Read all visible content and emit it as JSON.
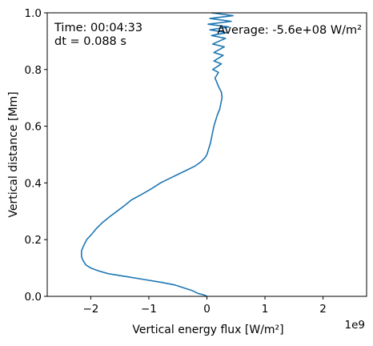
{
  "chart_data": {
    "type": "line",
    "xlabel": "Vertical energy flux [W/m²]",
    "ylabel": "Vertical distance [Mm]",
    "x_offset_label": "1e9",
    "x_scale": 1000000000,
    "xlim": [
      -2.75,
      2.75
    ],
    "ylim": [
      0.0,
      1.0
    ],
    "xticks": [
      -2,
      -1,
      0,
      1,
      2
    ],
    "xtick_labels": [
      "−2",
      "−1",
      "0",
      "1",
      "2"
    ],
    "yticks": [
      0.0,
      0.2,
      0.4,
      0.6,
      0.8,
      1.0
    ],
    "ytick_labels": [
      "0.0",
      "0.2",
      "0.4",
      "0.6",
      "0.8",
      "1.0"
    ],
    "grid": false,
    "line_color": "#1f77b4",
    "annotations": {
      "time": "Time: 00:04:33",
      "dt": "dt = 0.088 s",
      "average": "Average: -5.6e+08 W/m²"
    },
    "series": [
      {
        "x": [
          0.0,
          -0.05,
          -0.15,
          -0.25,
          -0.55,
          -0.8,
          -1.1,
          -1.4,
          -1.7,
          -1.87,
          -2.0,
          -2.08,
          -2.13,
          -2.16,
          -2.16,
          -2.12,
          -2.07,
          -1.98,
          -1.9,
          -1.8,
          -1.68,
          -1.55,
          -1.42,
          -1.3,
          -1.12,
          -0.95,
          -0.8,
          -0.65,
          -0.5,
          -0.35,
          -0.2,
          -0.1,
          -0.03,
          0.0,
          0.03,
          0.06,
          0.08,
          0.1,
          0.12,
          0.15,
          0.18,
          0.22,
          0.24,
          0.26,
          0.25,
          0.2,
          0.14,
          0.2,
          0.1,
          0.25,
          0.12,
          0.28,
          0.12,
          0.3,
          0.1,
          0.32,
          0.08,
          0.34,
          0.05,
          0.38,
          0.02,
          0.42,
          0.05,
          0.45,
          0.08
        ],
        "y": [
          0.0,
          0.005,
          0.01,
          0.02,
          0.04,
          0.05,
          0.06,
          0.07,
          0.08,
          0.09,
          0.1,
          0.11,
          0.125,
          0.14,
          0.16,
          0.18,
          0.2,
          0.22,
          0.24,
          0.26,
          0.28,
          0.3,
          0.32,
          0.34,
          0.36,
          0.38,
          0.4,
          0.415,
          0.43,
          0.445,
          0.46,
          0.475,
          0.49,
          0.5,
          0.52,
          0.54,
          0.56,
          0.58,
          0.6,
          0.62,
          0.64,
          0.66,
          0.68,
          0.7,
          0.72,
          0.74,
          0.77,
          0.79,
          0.8,
          0.82,
          0.83,
          0.85,
          0.86,
          0.88,
          0.89,
          0.91,
          0.92,
          0.93,
          0.94,
          0.95,
          0.96,
          0.97,
          0.98,
          0.99,
          1.0
        ]
      }
    ]
  }
}
